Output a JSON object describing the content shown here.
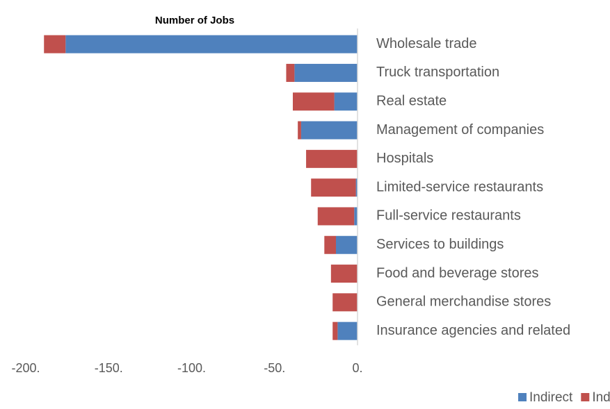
{
  "chart_data": {
    "type": "stacked_barh",
    "title": "Number of Jobs",
    "categories": [
      "Wholesale trade",
      "Truck transportation",
      "Real estate",
      "Management of companies",
      "Hospitals",
      "Limited-service restaurants",
      "Full-service restaurants",
      "Services to buildings",
      "Food and beverage stores",
      "General merchandise stores",
      "Insurance agencies and related"
    ],
    "series": [
      {
        "name": "Indirect",
        "color": "#4f81bd",
        "values": [
          -176,
          -38,
          -14,
          -34,
          0,
          -1,
          -2,
          -13,
          0,
          0,
          -12
        ]
      },
      {
        "name": "Induced",
        "color": "#c0504d",
        "values": [
          -13,
          -5,
          -25,
          -2,
          -31,
          -27,
          -22,
          -7,
          -16,
          -15,
          -3
        ]
      }
    ],
    "xlim": [
      -200,
      0
    ],
    "xticks": [
      {
        "value": -200,
        "label": "-200."
      },
      {
        "value": -150,
        "label": "-150."
      },
      {
        "value": -100,
        "label": "-100."
      },
      {
        "value": -50,
        "label": "-50."
      },
      {
        "value": 0,
        "label": "0."
      }
    ],
    "legend": "bottom-right"
  }
}
